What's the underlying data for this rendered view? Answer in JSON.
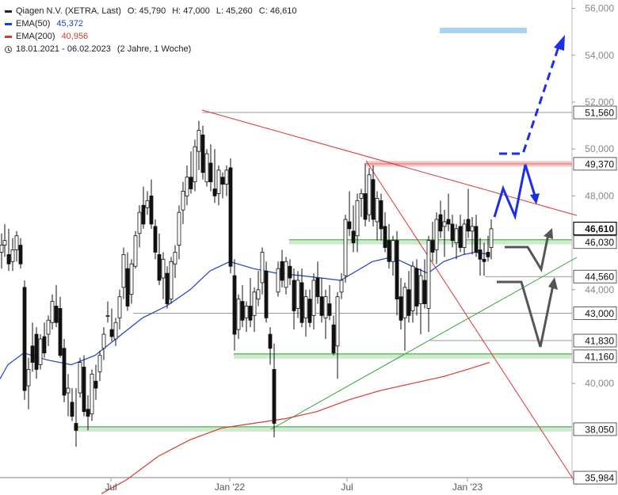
{
  "header": {
    "instrument": "Qiagen N.V. (XETRA, Last)",
    "open": "O: 45,790",
    "high": "H: 47,000",
    "low": "L: 45,260",
    "close": "C: 46,610",
    "period": "18.01.2021 - 06.02.2023",
    "period_note": "(2 Jahre, 1 Woche)"
  },
  "legend": [
    {
      "name": "EMA(50)",
      "value": "45,372",
      "color": "#1c3fd0"
    },
    {
      "name": "EMA(200)",
      "value": "40,956",
      "color": "#d83b2f"
    }
  ],
  "chart_data": {
    "type": "candlestick",
    "y_axis_ticks": [
      "56,000",
      "54,000",
      "52,000",
      "50,000",
      "48,000",
      "44,000",
      "40,000"
    ],
    "x_axis_ticks": [
      "Jul",
      "Jan '22",
      "Jul",
      "Jan '23"
    ],
    "ylim": [
      35.3,
      56.2
    ],
    "level_labels": [
      {
        "value": 51.56,
        "label": "51,560",
        "style": "line"
      },
      {
        "value": 49.37,
        "label": "49,370",
        "style": "zone-red"
      },
      {
        "value": 46.61,
        "label": "46,610",
        "style": "last-price"
      },
      {
        "value": 46.03,
        "label": "46,030",
        "style": "zone-green"
      },
      {
        "value": 44.56,
        "label": "44,560",
        "style": "line"
      },
      {
        "value": 43.0,
        "label": "43,000",
        "style": "line"
      },
      {
        "value": 41.83,
        "label": "41,830",
        "style": "line"
      },
      {
        "value": 41.16,
        "label": "41,160",
        "style": "zone-green"
      },
      {
        "value": 38.05,
        "label": "38,050",
        "style": "zone-green"
      },
      {
        "value": 35.984,
        "label": "35,984",
        "style": "line"
      }
    ],
    "series": [
      {
        "name": "EMA(50)",
        "color": "#1c3fd0",
        "points": [
          [
            0,
            40.2
          ],
          [
            10,
            40.8
          ],
          [
            30,
            41.3
          ],
          [
            60,
            41.0
          ],
          [
            90,
            40.8
          ],
          [
            120,
            41.2
          ],
          [
            150,
            42.0
          ],
          [
            180,
            42.8
          ],
          [
            210,
            43.3
          ],
          [
            240,
            44.0
          ],
          [
            265,
            44.8
          ],
          [
            290,
            45.2
          ],
          [
            320,
            44.9
          ],
          [
            350,
            44.7
          ],
          [
            380,
            44.6
          ],
          [
            405,
            44.5
          ],
          [
            430,
            44.4
          ],
          [
            450,
            44.8
          ],
          [
            470,
            45.2
          ],
          [
            495,
            45.4
          ],
          [
            520,
            45.0
          ],
          [
            540,
            44.7
          ],
          [
            560,
            45.2
          ],
          [
            585,
            45.5
          ],
          [
            600,
            45.6
          ],
          [
            618,
            45.5
          ]
        ]
      },
      {
        "name": "EMA(200)",
        "color": "#d83b2f",
        "points": [
          [
            128,
            35.3
          ],
          [
            160,
            35.9
          ],
          [
            200,
            36.9
          ],
          [
            240,
            37.6
          ],
          [
            280,
            38.1
          ],
          [
            320,
            38.3
          ],
          [
            360,
            38.5
          ],
          [
            400,
            38.8
          ],
          [
            440,
            39.3
          ],
          [
            480,
            39.7
          ],
          [
            520,
            40.0
          ],
          [
            560,
            40.3
          ],
          [
            590,
            40.6
          ],
          [
            618,
            40.9
          ]
        ]
      }
    ],
    "candles_weekly": [
      [
        2,
        45.6,
        46.4,
        44.9,
        45.9
      ],
      [
        6,
        45.9,
        46.8,
        45.4,
        46.1
      ],
      [
        11,
        45.5,
        46.6,
        44.8,
        45.1
      ],
      [
        16,
        45.2,
        46.2,
        44.8,
        45.7
      ],
      [
        21,
        45.7,
        46.5,
        45.2,
        46.3
      ],
      [
        26,
        45.9,
        46.2,
        44.9,
        45.1
      ],
      [
        31,
        44.1,
        44.4,
        39.3,
        39.7
      ],
      [
        36,
        39.9,
        41.1,
        38.9,
        40.6
      ],
      [
        41,
        41.6,
        42.6,
        40.5,
        40.9
      ],
      [
        46,
        42.1,
        42.4,
        40.2,
        40.6
      ],
      [
        51,
        40.8,
        42.1,
        40.6,
        41.9
      ],
      [
        56,
        42.0,
        42.6,
        41.1,
        41.3
      ],
      [
        61,
        42.1,
        42.9,
        41.6,
        42.7
      ],
      [
        66,
        42.6,
        43.8,
        42.3,
        43.5
      ],
      [
        71,
        43.3,
        44.2,
        42.4,
        42.6
      ],
      [
        76,
        43.2,
        43.7,
        41.1,
        41.2
      ],
      [
        81,
        41.5,
        41.9,
        39.2,
        39.5
      ],
      [
        86,
        39.6,
        40.4,
        38.6,
        39.8
      ],
      [
        91,
        39.2,
        39.8,
        38.4,
        38.6
      ],
      [
        96,
        38.3,
        39.8,
        37.3,
        38.0
      ],
      [
        101,
        39.6,
        41.1,
        39.4,
        40.9
      ],
      [
        106,
        40.7,
        41.2,
        38.6,
        38.8
      ],
      [
        111,
        38.9,
        39.5,
        38.0,
        38.6
      ],
      [
        116,
        38.7,
        40.6,
        38.4,
        40.4
      ],
      [
        121,
        40.1,
        40.8,
        39.3,
        39.8
      ],
      [
        126,
        40.5,
        41.4,
        40.1,
        41.2
      ],
      [
        131,
        41.5,
        42.4,
        41.0,
        42.1
      ],
      [
        136,
        42.9,
        43.5,
        42.6,
        42.9
      ],
      [
        141,
        42.3,
        43.2,
        41.8,
        42.0
      ],
      [
        146,
        41.9,
        42.8,
        41.6,
        42.6
      ],
      [
        151,
        42.8,
        44.0,
        42.3,
        43.7
      ],
      [
        156,
        44.1,
        45.8,
        43.6,
        45.5
      ],
      [
        161,
        44.9,
        45.6,
        43.1,
        43.3
      ],
      [
        166,
        43.8,
        45.3,
        43.4,
        45.1
      ],
      [
        171,
        45.0,
        46.5,
        44.9,
        46.3
      ],
      [
        176,
        46.4,
        47.6,
        45.8,
        47.3
      ],
      [
        181,
        47.6,
        48.4,
        46.6,
        46.8
      ],
      [
        186,
        47.5,
        48.2,
        47.2,
        47.8
      ],
      [
        191,
        48.0,
        48.7,
        46.6,
        46.8
      ],
      [
        196,
        46.7,
        47.0,
        45.3,
        45.6
      ],
      [
        201,
        45.5,
        46.4,
        44.2,
        44.4
      ],
      [
        206,
        44.5,
        45.6,
        43.6,
        45.3
      ],
      [
        211,
        44.7,
        45.0,
        43.2,
        43.4
      ],
      [
        216,
        43.6,
        45.4,
        43.4,
        45.2
      ],
      [
        221,
        45.1,
        45.9,
        44.5,
        45.6
      ],
      [
        226,
        45.9,
        47.6,
        45.3,
        47.3
      ],
      [
        231,
        47.4,
        48.6,
        46.8,
        48.2
      ],
      [
        236,
        48.0,
        49.3,
        47.6,
        48.8
      ],
      [
        241,
        48.8,
        49.9,
        48.1,
        48.3
      ],
      [
        246,
        48.6,
        50.4,
        48.2,
        50.1
      ],
      [
        251,
        49.9,
        51.2,
        49.1,
        50.8
      ],
      [
        256,
        50.6,
        51.0,
        48.7,
        49.0
      ],
      [
        261,
        48.6,
        50.0,
        48.4,
        49.8
      ],
      [
        266,
        49.4,
        50.2,
        48.2,
        48.6
      ],
      [
        271,
        48.3,
        50.0,
        47.7,
        48.0
      ],
      [
        276,
        48.1,
        49.3,
        47.6,
        49.1
      ],
      [
        281,
        48.8,
        49.0,
        47.9,
        48.5
      ],
      [
        286,
        48.5,
        49.3,
        48.0,
        49.1
      ],
      [
        291,
        49.2,
        49.6,
        44.7,
        45.0
      ],
      [
        296,
        44.6,
        45.3,
        41.4,
        42.1
      ],
      [
        301,
        42.3,
        43.8,
        41.9,
        43.6
      ],
      [
        306,
        43.5,
        44.2,
        42.4,
        42.7
      ],
      [
        311,
        42.8,
        43.5,
        42.2,
        43.3
      ],
      [
        316,
        43.3,
        44.5,
        42.4,
        42.7
      ],
      [
        321,
        42.9,
        44.1,
        42.2,
        43.9
      ],
      [
        326,
        43.6,
        44.8,
        43.3,
        44.0
      ],
      [
        331,
        44.3,
        45.8,
        43.8,
        45.6
      ],
      [
        336,
        44.8,
        45.2,
        42.6,
        42.8
      ],
      [
        341,
        42.1,
        42.4,
        40.8,
        41.5
      ],
      [
        346,
        40.6,
        41.7,
        37.7,
        38.3
      ],
      [
        351,
        43.9,
        45.2,
        43.7,
        44.9
      ],
      [
        356,
        45.2,
        45.7,
        44.1,
        44.4
      ],
      [
        361,
        44.1,
        45.4,
        43.8,
        45.2
      ],
      [
        366,
        45.0,
        45.3,
        44.2,
        44.5
      ],
      [
        371,
        44.4,
        44.9,
        42.3,
        43.1
      ],
      [
        376,
        43.2,
        44.8,
        42.8,
        44.4
      ],
      [
        381,
        44.3,
        44.9,
        42.4,
        42.6
      ],
      [
        386,
        42.8,
        44.0,
        42.0,
        43.7
      ],
      [
        391,
        43.6,
        44.0,
        42.4,
        42.6
      ],
      [
        396,
        42.9,
        44.7,
        42.3,
        44.4
      ],
      [
        401,
        44.5,
        45.2,
        43.4,
        43.7
      ],
      [
        406,
        43.7,
        44.5,
        42.6,
        42.9
      ],
      [
        411,
        42.8,
        44.0,
        41.9,
        43.7
      ],
      [
        416,
        43.4,
        44.2,
        42.7,
        42.9
      ],
      [
        421,
        42.5,
        42.9,
        41.2,
        41.3
      ],
      [
        426,
        41.6,
        43.9,
        40.2,
        43.7
      ],
      [
        431,
        43.9,
        44.7,
        43.6,
        44.4
      ],
      [
        436,
        44.6,
        47.2,
        44.3,
        47.0
      ],
      [
        441,
        46.9,
        48.2,
        46.3,
        46.6
      ],
      [
        446,
        46.5,
        47.6,
        45.6,
        46.0
      ],
      [
        451,
        46.3,
        48.1,
        45.6,
        47.8
      ],
      [
        456,
        47.9,
        48.3,
        47.1,
        48.1
      ],
      [
        461,
        48.1,
        49.4,
        46.7,
        47.0
      ],
      [
        466,
        47.2,
        49.2,
        46.9,
        48.9
      ],
      [
        471,
        48.7,
        49.3,
        46.7,
        47.0
      ],
      [
        476,
        46.9,
        48.2,
        46.1,
        47.9
      ],
      [
        481,
        47.8,
        48.1,
        46.1,
        46.6
      ],
      [
        486,
        46.7,
        47.3,
        45.6,
        45.8
      ],
      [
        491,
        46.1,
        46.8,
        44.9,
        45.2
      ],
      [
        496,
        45.2,
        46.3,
        44.6,
        46.1
      ],
      [
        501,
        46.1,
        46.5,
        42.9,
        43.6
      ],
      [
        506,
        43.7,
        44.5,
        42.3,
        42.7
      ],
      [
        511,
        42.8,
        44.3,
        41.4,
        44.1
      ],
      [
        516,
        44.0,
        44.8,
        42.6,
        42.9
      ],
      [
        521,
        43.1,
        45.2,
        42.6,
        45.0
      ],
      [
        526,
        44.9,
        45.3,
        42.9,
        43.3
      ],
      [
        531,
        43.4,
        44.9,
        42.1,
        44.6
      ],
      [
        536,
        44.4,
        45.3,
        43.2,
        43.4
      ],
      [
        541,
        43.2,
        46.3,
        42.2,
        46.1
      ],
      [
        546,
        46.1,
        46.9,
        45.2,
        45.6
      ],
      [
        551,
        45.7,
        47.3,
        45.1,
        47.0
      ],
      [
        556,
        47.2,
        47.8,
        46.2,
        46.5
      ],
      [
        561,
        46.7,
        47.4,
        45.4,
        46.9
      ],
      [
        566,
        47.0,
        48.1,
        46.5,
        46.8
      ],
      [
        571,
        46.8,
        47.2,
        45.8,
        46.1
      ],
      [
        576,
        46.0,
        46.8,
        45.3,
        46.6
      ],
      [
        581,
        46.7,
        47.2,
        45.6,
        45.8
      ],
      [
        586,
        45.8,
        47.0,
        45.5,
        46.8
      ],
      [
        591,
        47.0,
        48.3,
        46.2,
        46.5
      ],
      [
        596,
        46.5,
        47.1,
        45.5,
        46.7
      ],
      [
        601,
        46.7,
        47.2,
        45.4,
        45.6
      ],
      [
        606,
        45.7,
        46.2,
        44.6,
        45.3
      ],
      [
        611,
        45.3,
        46.0,
        44.6,
        45.2
      ],
      [
        616,
        45.6,
        46.3,
        45.2,
        45.4
      ],
      [
        620,
        45.8,
        47.0,
        45.3,
        46.6
      ]
    ]
  }
}
